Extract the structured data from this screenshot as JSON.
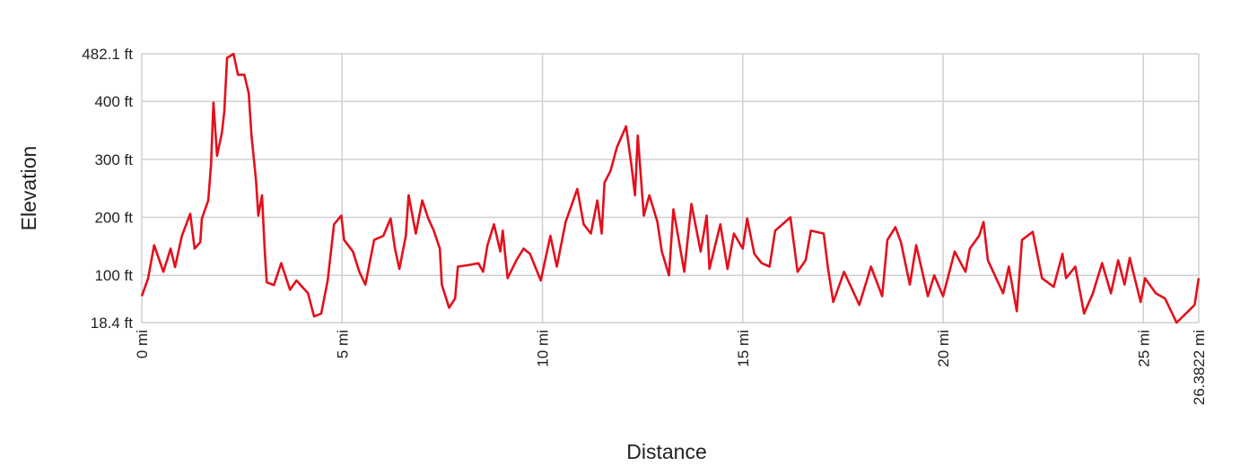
{
  "chart_data": {
    "type": "line",
    "title": "",
    "xlabel": "Distance",
    "ylabel": "Elevation",
    "xlim": [
      0,
      26.3822
    ],
    "ylim": [
      18.4,
      482.1
    ],
    "grid": true,
    "line_color": "#e3101c",
    "x_ticks": [
      {
        "value": 0,
        "label": "0 mi"
      },
      {
        "value": 5,
        "label": "5 mi"
      },
      {
        "value": 10,
        "label": "10 mi"
      },
      {
        "value": 15,
        "label": "15 mi"
      },
      {
        "value": 20,
        "label": "20 mi"
      },
      {
        "value": 25,
        "label": "25 mi"
      },
      {
        "value": 26.3822,
        "label": "26.3822 mi"
      }
    ],
    "y_ticks": [
      {
        "value": 482.1,
        "label": "482.1 ft"
      },
      {
        "value": 400,
        "label": "400 ft"
      },
      {
        "value": 300,
        "label": "300 ft"
      },
      {
        "value": 200,
        "label": "200 ft"
      },
      {
        "value": 100,
        "label": "100 ft"
      },
      {
        "value": 18.4,
        "label": "18.4 ft"
      }
    ],
    "series": [
      {
        "x": [
          0,
          0.16,
          0.31,
          0.54,
          0.72,
          0.83,
          1.0,
          1.21,
          1.32,
          1.46,
          1.5,
          1.66,
          1.73,
          1.79,
          1.88,
          2.0,
          2.06,
          2.13,
          2.29,
          2.4,
          2.56,
          2.67,
          2.74,
          2.85,
          2.91,
          3.0,
          3.07,
          3.12,
          3.3,
          3.48,
          3.7,
          3.86,
          4.15,
          4.3,
          4.48,
          4.64,
          4.8,
          4.98,
          5.05,
          5.27,
          5.43,
          5.58,
          5.8,
          6.03,
          6.21,
          6.32,
          6.43,
          6.59,
          6.66,
          6.84,
          7.0,
          7.15,
          7.29,
          7.44,
          7.49,
          7.67,
          7.82,
          7.89,
          8.18,
          8.4,
          8.52,
          8.63,
          8.79,
          8.95,
          9.01,
          9.13,
          9.35,
          9.53,
          9.69,
          9.96,
          10.2,
          10.36,
          10.58,
          10.87,
          11.03,
          11.21,
          11.37,
          11.48,
          11.55,
          11.7,
          11.86,
          12.09,
          12.22,
          12.31,
          12.38,
          12.53,
          12.67,
          12.87,
          12.98,
          13.16,
          13.27,
          13.54,
          13.72,
          13.95,
          14.1,
          14.17,
          14.44,
          14.62,
          14.78,
          15.0,
          15.11,
          15.29,
          15.47,
          15.67,
          15.81,
          16.19,
          16.37,
          16.57,
          16.7,
          17.02,
          17.13,
          17.26,
          17.53,
          17.91,
          18.2,
          18.48,
          18.61,
          18.81,
          18.95,
          19.17,
          19.33,
          19.62,
          19.78,
          20.0,
          20.29,
          20.56,
          20.67,
          20.9,
          21.01,
          21.12,
          21.5,
          21.64,
          21.84,
          21.97,
          22.24,
          22.47,
          22.76,
          22.98,
          23.07,
          23.3,
          23.52,
          23.74,
          23.97,
          24.19,
          24.37,
          24.53,
          24.66,
          24.93,
          25.04,
          25.31,
          25.54,
          25.83,
          26.12,
          26.28,
          26.38
        ],
        "y": [
          64,
          95,
          152,
          106,
          146,
          114,
          168,
          206,
          146,
          157,
          198,
          229,
          291,
          398,
          306,
          346,
          383,
          475,
          482,
          446,
          446,
          414,
          341,
          264,
          203,
          238,
          141,
          88,
          83,
          121,
          75,
          91,
          69,
          29,
          34,
          91,
          188,
          203,
          161,
          141,
          106,
          84,
          161,
          168,
          198,
          146,
          111,
          168,
          238,
          172,
          229,
          198,
          177,
          146,
          84,
          44,
          60,
          115,
          118,
          121,
          106,
          152,
          188,
          141,
          177,
          95,
          126,
          146,
          137,
          91,
          168,
          115,
          192,
          249,
          188,
          172,
          229,
          172,
          260,
          280,
          321,
          357,
          291,
          238,
          341,
          203,
          238,
          192,
          141,
          100,
          214,
          106,
          223,
          141,
          203,
          111,
          188,
          111,
          172,
          146,
          198,
          137,
          121,
          115,
          177,
          200,
          106,
          126,
          177,
          172,
          111,
          54,
          106,
          49,
          115,
          64,
          161,
          183,
          157,
          84,
          152,
          64,
          100,
          64,
          141,
          106,
          146,
          168,
          192,
          126,
          69,
          115,
          38,
          161,
          175,
          95,
          80,
          137,
          95,
          115,
          34,
          69,
          121,
          69,
          126,
          84,
          130,
          54,
          95,
          69,
          60,
          18.4,
          38,
          49,
          95
        ]
      }
    ]
  }
}
